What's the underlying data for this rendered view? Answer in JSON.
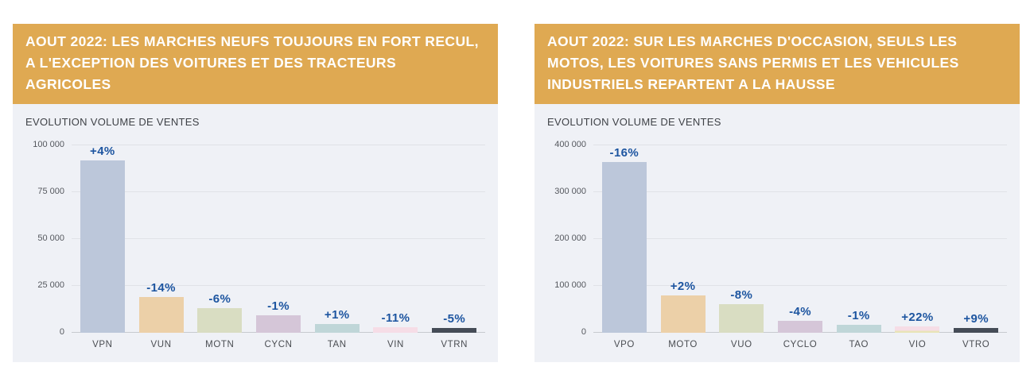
{
  "accent_colors": {
    "header_background": "#dfa952",
    "header_text": "#ffffff",
    "card_background": "#eff1f6",
    "percent_label_blue": "#1d55a0",
    "axis_text": "#55585e"
  },
  "chart_data": [
    {
      "type": "bar",
      "title": "AOUT 2022: LES MARCHES NEUFS TOUJOURS EN FORT RECUL, A L'EXCEPTION DES VOITURES ET DES TRACTEURS AGRICOLES",
      "subtitle": "EVOLUTION VOLUME DE VENTES",
      "categories": [
        "VPN",
        "VUN",
        "MOTN",
        "CYCN",
        "TAN",
        "VIN",
        "VTRN"
      ],
      "values": [
        92000,
        19000,
        13000,
        9500,
        4700,
        3000,
        2500
      ],
      "bar_labels": [
        "+4%",
        "-14%",
        "-6%",
        "-1%",
        "+1%",
        "-11%",
        "-5%"
      ],
      "bar_colors": [
        "#bcc7da",
        "#ecd0a8",
        "#d9ddc2",
        "#d5c6d8",
        "#bfd6d8",
        "#f6dde6",
        "#454c57"
      ],
      "bar_underlay_colors": [
        null,
        null,
        null,
        null,
        null,
        null,
        null
      ],
      "xlabel": "",
      "ylabel": "",
      "ylim": [
        0,
        100000
      ],
      "yticks": [
        0,
        25000,
        50000,
        75000,
        100000
      ],
      "ytick_labels": [
        "0",
        "25 000",
        "50 000",
        "75 000",
        "100 000"
      ],
      "grid": true,
      "legend": false
    },
    {
      "type": "bar",
      "title": "AOUT 2022:  SUR LES MARCHES D'OCCASION, SEULS LES MOTOS, LES VOITURES SANS PERMIS ET LES VEHICULES INDUSTRIELS REPARTENT A LA HAUSSE",
      "subtitle": "EVOLUTION VOLUME DE VENTES",
      "categories": [
        "VPO",
        "MOTO",
        "VUO",
        "CYCLO",
        "TAO",
        "VIO",
        "VTRO"
      ],
      "values": [
        365000,
        79000,
        61000,
        25000,
        17000,
        13000,
        10000
      ],
      "bar_labels": [
        "-16%",
        "+2%",
        "-8%",
        "-4%",
        "-1%",
        "+22%",
        "+9%"
      ],
      "bar_colors": [
        "#bcc7da",
        "#ecd0a8",
        "#d9ddc2",
        "#d5c6d8",
        "#bfd6d8",
        "#f6dde6",
        "#454c57"
      ],
      "bar_underlay_colors": [
        null,
        null,
        null,
        null,
        null,
        "#e8e4b8",
        null
      ],
      "xlabel": "",
      "ylabel": "",
      "ylim": [
        0,
        400000
      ],
      "yticks": [
        0,
        100000,
        200000,
        300000,
        400000
      ],
      "ytick_labels": [
        "0",
        "100 000",
        "200 000",
        "300 000",
        "400 000"
      ],
      "grid": true,
      "legend": false
    }
  ]
}
